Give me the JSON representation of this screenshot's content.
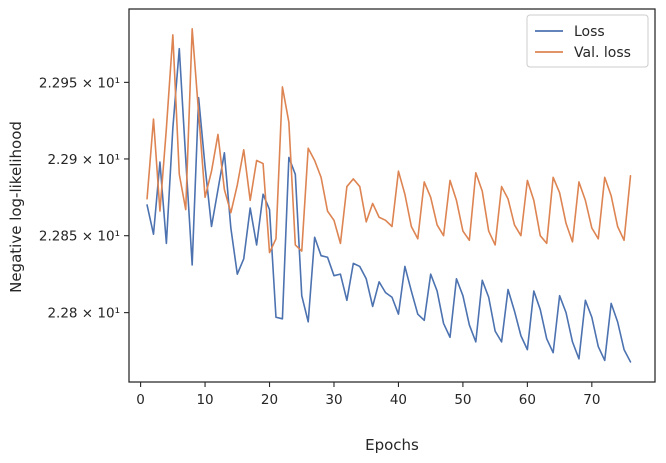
{
  "chart_data": {
    "type": "line",
    "xlabel": "Epochs",
    "ylabel": "Negative log-likelihood",
    "xlim": [
      -1.8,
      79.8
    ],
    "ylim": [
      22.755,
      22.998
    ],
    "y_scale": "log",
    "grid": false,
    "legend_position": "top-right",
    "x_ticks": [
      0,
      10,
      20,
      30,
      40,
      50,
      60,
      70
    ],
    "y_ticks": [
      {
        "value": 22.8,
        "label": "2.28 × 10¹"
      },
      {
        "value": 22.85,
        "label": "2.285 × 10¹"
      },
      {
        "value": 22.9,
        "label": "2.29 × 10¹"
      },
      {
        "value": 22.95,
        "label": "2.295 × 10¹"
      }
    ],
    "series": [
      {
        "name": "Loss",
        "color": "#4c72b0",
        "x": [
          1,
          2,
          3,
          4,
          5,
          6,
          7,
          8,
          9,
          10,
          11,
          12,
          13,
          14,
          15,
          16,
          17,
          18,
          19,
          20,
          21,
          22,
          23,
          24,
          25,
          26,
          27,
          28,
          29,
          30,
          31,
          32,
          33,
          34,
          35,
          36,
          37,
          38,
          39,
          40,
          41,
          42,
          43,
          44,
          45,
          46,
          47,
          48,
          49,
          50,
          51,
          52,
          53,
          54,
          55,
          56,
          57,
          58,
          59,
          60,
          61,
          62,
          63,
          64,
          65,
          66,
          67,
          68,
          69,
          70,
          71,
          72,
          73,
          74,
          75,
          76
        ],
        "values": [
          22.87,
          22.851,
          22.898,
          22.845,
          22.92,
          22.972,
          22.9,
          22.831,
          22.94,
          22.895,
          22.856,
          22.88,
          22.904,
          22.855,
          22.825,
          22.835,
          22.868,
          22.844,
          22.877,
          22.867,
          22.797,
          22.796,
          22.901,
          22.89,
          22.811,
          22.794,
          22.849,
          22.837,
          22.836,
          22.824,
          22.825,
          22.808,
          22.832,
          22.83,
          22.822,
          22.804,
          22.82,
          22.813,
          22.81,
          22.799,
          22.83,
          22.814,
          22.799,
          22.795,
          22.825,
          22.814,
          22.793,
          22.784,
          22.822,
          22.811,
          22.792,
          22.781,
          22.821,
          22.81,
          22.788,
          22.781,
          22.815,
          22.801,
          22.785,
          22.776,
          22.814,
          22.802,
          22.783,
          22.774,
          22.811,
          22.8,
          22.781,
          22.77,
          22.808,
          22.797,
          22.778,
          22.769,
          22.806,
          22.794,
          22.776,
          22.768
        ]
      },
      {
        "name": "Val. loss",
        "color": "#dd8452",
        "x": [
          1,
          2,
          3,
          4,
          5,
          6,
          7,
          8,
          9,
          10,
          11,
          12,
          13,
          14,
          15,
          16,
          17,
          18,
          19,
          20,
          21,
          22,
          23,
          24,
          25,
          26,
          27,
          28,
          29,
          30,
          31,
          32,
          33,
          34,
          35,
          36,
          37,
          38,
          39,
          40,
          41,
          42,
          43,
          44,
          45,
          46,
          47,
          48,
          49,
          50,
          51,
          52,
          53,
          54,
          55,
          56,
          57,
          58,
          59,
          60,
          61,
          62,
          63,
          64,
          65,
          66,
          67,
          68,
          69,
          70,
          71,
          72,
          73,
          74,
          75,
          76
        ],
        "values": [
          22.874,
          22.926,
          22.866,
          22.92,
          22.981,
          22.89,
          22.867,
          22.985,
          22.93,
          22.875,
          22.892,
          22.916,
          22.88,
          22.865,
          22.883,
          22.906,
          22.873,
          22.899,
          22.897,
          22.839,
          22.848,
          22.947,
          22.924,
          22.844,
          22.84,
          22.907,
          22.899,
          22.888,
          22.866,
          22.86,
          22.845,
          22.882,
          22.887,
          22.882,
          22.859,
          22.871,
          22.862,
          22.86,
          22.856,
          22.892,
          22.877,
          22.856,
          22.848,
          22.885,
          22.875,
          22.857,
          22.85,
          22.886,
          22.873,
          22.853,
          22.847,
          22.891,
          22.879,
          22.853,
          22.844,
          22.882,
          22.874,
          22.857,
          22.85,
          22.886,
          22.873,
          22.85,
          22.845,
          22.888,
          22.878,
          22.858,
          22.846,
          22.885,
          22.873,
          22.855,
          22.848,
          22.888,
          22.876,
          22.856,
          22.847,
          22.889
        ]
      }
    ]
  }
}
